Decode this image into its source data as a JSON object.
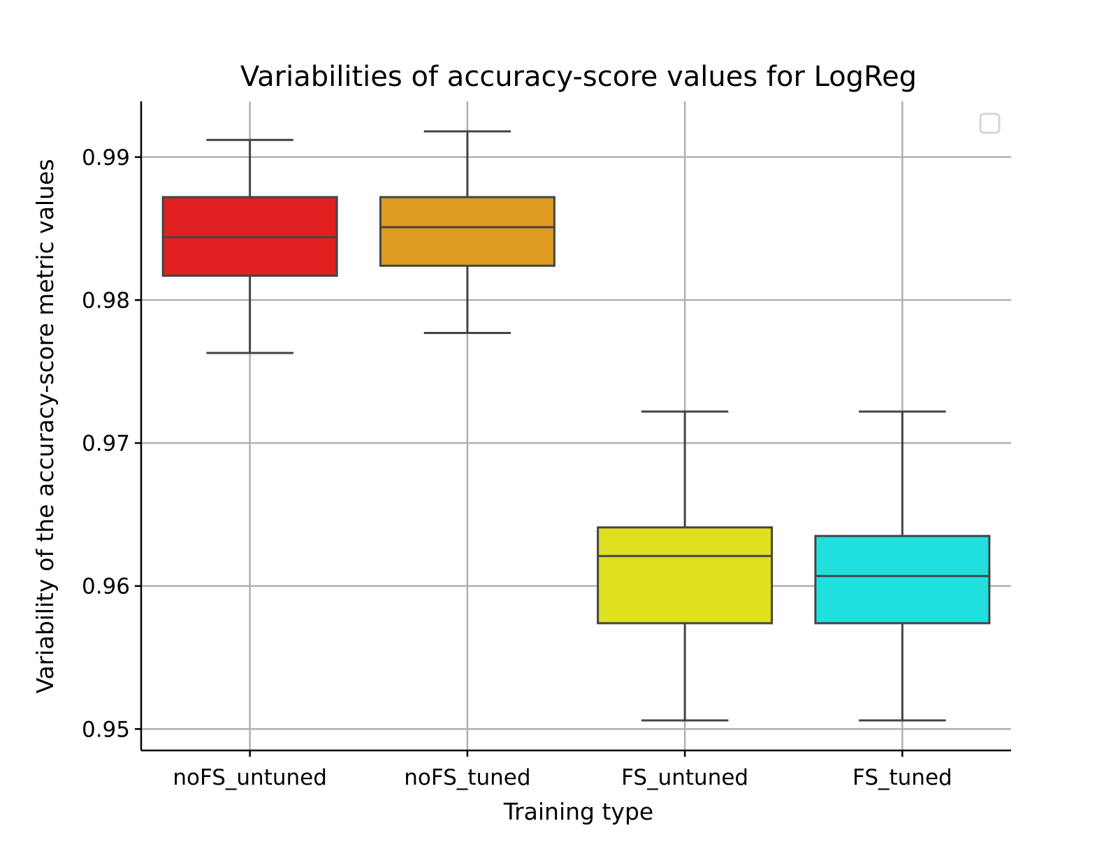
{
  "chart_data": {
    "type": "box",
    "title": "Variabilities of accuracy-score values for LogReg",
    "xlabel": "Training type",
    "ylabel": "Variability of the accuracy-score metric values",
    "categories": [
      "noFS_untuned",
      "noFS_tuned",
      "FS_untuned",
      "FS_tuned"
    ],
    "ylim": [
      0.9485,
      0.9939
    ],
    "yticks": [
      0.95,
      0.96,
      0.97,
      0.98,
      0.99
    ],
    "ytick_labels": [
      "0.95",
      "0.96",
      "0.97",
      "0.98",
      "0.99"
    ],
    "grid": true,
    "legend": "top-right, empty",
    "boxes": [
      {
        "category": "noFS_untuned",
        "whisker_low": 0.9763,
        "q1": 0.9817,
        "median": 0.9844,
        "q3": 0.9872,
        "whisker_high": 0.9912,
        "color": "#e02020"
      },
      {
        "category": "noFS_tuned",
        "whisker_low": 0.9777,
        "q1": 0.9824,
        "median": 0.9851,
        "q3": 0.9872,
        "whisker_high": 0.9918,
        "color": "#de9b22"
      },
      {
        "category": "FS_untuned",
        "whisker_low": 0.9506,
        "q1": 0.9574,
        "median": 0.9621,
        "q3": 0.9641,
        "whisker_high": 0.9722,
        "color": "#dfe01f"
      },
      {
        "category": "FS_tuned",
        "whisker_low": 0.9506,
        "q1": 0.9574,
        "median": 0.9607,
        "q3": 0.9635,
        "whisker_high": 0.9722,
        "color": "#20e0dd"
      }
    ]
  }
}
